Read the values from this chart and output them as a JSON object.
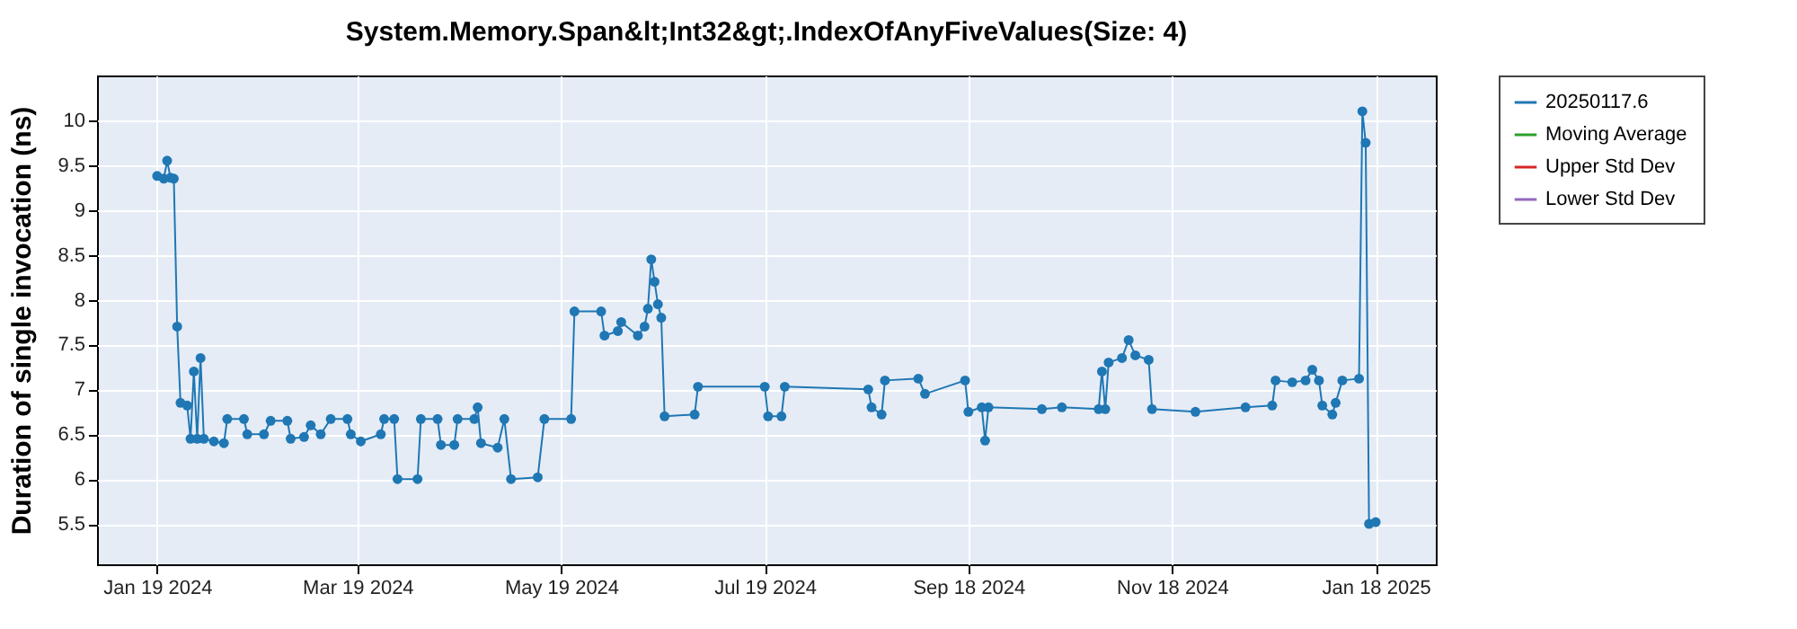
{
  "chart_data": {
    "type": "line",
    "title": "System.Memory.Span&lt;Int32&gt;.IndexOfAnyFiveValues(Size: 4)",
    "ylabel": "Duration of single invocation (ns)",
    "x": [
      "2024-01-19",
      "2024-01-21",
      "2024-01-22",
      "2024-01-23",
      "2024-01-24",
      "2024-01-25",
      "2024-01-26",
      "2024-01-28",
      "2024-01-29",
      "2024-01-30",
      "2024-01-31",
      "2024-02-01",
      "2024-02-02",
      "2024-02-05",
      "2024-02-08",
      "2024-02-09",
      "2024-02-14",
      "2024-02-15",
      "2024-02-20",
      "2024-02-22",
      "2024-02-27",
      "2024-02-28",
      "2024-03-03",
      "2024-03-05",
      "2024-03-08",
      "2024-03-11",
      "2024-03-16",
      "2024-03-17",
      "2024-03-20",
      "2024-03-26",
      "2024-03-27",
      "2024-03-30",
      "2024-03-31",
      "2024-04-06",
      "2024-04-07",
      "2024-04-12",
      "2024-04-13",
      "2024-04-17",
      "2024-04-18",
      "2024-04-23",
      "2024-04-24",
      "2024-04-25",
      "2024-04-30",
      "2024-05-02",
      "2024-05-04",
      "2024-05-12",
      "2024-05-14",
      "2024-05-22",
      "2024-05-23",
      "2024-05-31",
      "2024-06-01",
      "2024-06-05",
      "2024-06-06",
      "2024-06-11",
      "2024-06-13",
      "2024-06-14",
      "2024-06-15",
      "2024-06-16",
      "2024-06-17",
      "2024-06-18",
      "2024-06-19",
      "2024-06-28",
      "2024-06-29",
      "2024-07-19",
      "2024-07-20",
      "2024-07-24",
      "2024-07-25",
      "2024-08-19",
      "2024-08-20",
      "2024-08-23",
      "2024-08-24",
      "2024-09-03",
      "2024-09-05",
      "2024-09-17",
      "2024-09-18",
      "2024-09-22",
      "2024-09-23",
      "2024-09-24",
      "2024-10-10",
      "2024-10-16",
      "2024-10-27",
      "2024-10-28",
      "2024-10-29",
      "2024-10-30",
      "2024-11-03",
      "2024-11-05",
      "2024-11-07",
      "2024-11-11",
      "2024-11-12",
      "2024-11-25",
      "2024-12-10",
      "2024-12-18",
      "2024-12-19",
      "2024-12-24",
      "2024-12-28",
      "2024-12-30",
      "2025-01-01",
      "2025-01-02",
      "2025-01-05",
      "2025-01-06",
      "2025-01-08",
      "2025-01-13",
      "2025-01-14",
      "2025-01-15",
      "2025-01-16",
      "2025-01-18"
    ],
    "series": [
      {
        "name": "20250117.6",
        "color": "#1f77b4",
        "values": [
          9.38,
          9.35,
          9.55,
          9.36,
          9.35,
          7.7,
          6.85,
          6.82,
          6.45,
          7.2,
          6.45,
          7.35,
          6.45,
          6.42,
          6.4,
          6.67,
          6.67,
          6.5,
          6.5,
          6.65,
          6.65,
          6.45,
          6.47,
          6.6,
          6.5,
          6.67,
          6.67,
          6.5,
          6.42,
          6.5,
          6.67,
          6.67,
          6.0,
          6.0,
          6.67,
          6.67,
          6.38,
          6.38,
          6.67,
          6.67,
          6.8,
          6.4,
          6.35,
          6.67,
          6.0,
          6.02,
          6.67,
          6.67,
          7.87,
          7.87,
          7.6,
          7.65,
          7.75,
          7.6,
          7.7,
          7.9,
          8.45,
          8.2,
          7.95,
          7.8,
          6.7,
          6.72,
          7.03,
          7.03,
          6.7,
          6.7,
          7.03,
          7.0,
          6.8,
          6.72,
          7.1,
          7.12,
          6.95,
          7.1,
          6.75,
          6.8,
          6.43,
          6.8,
          6.78,
          6.8,
          6.78,
          7.2,
          6.78,
          7.3,
          7.35,
          7.55,
          7.38,
          7.33,
          6.78,
          6.75,
          6.8,
          6.82,
          7.1,
          7.08,
          7.1,
          7.22,
          7.1,
          6.82,
          6.72,
          6.85,
          7.1,
          7.12,
          10.1,
          9.75,
          5.5,
          5.52
        ]
      },
      {
        "name": "Moving Average",
        "color": "#2ca02c",
        "values": [
          null,
          null,
          null,
          null,
          null,
          null,
          null,
          null,
          null,
          null,
          null,
          null,
          null,
          null,
          null,
          null,
          null,
          null,
          null,
          null,
          null,
          null,
          null,
          null,
          null,
          null,
          null,
          null,
          null,
          null,
          null,
          null,
          null,
          null,
          null,
          null,
          null,
          null,
          null,
          null,
          null,
          null,
          null,
          null,
          null,
          null,
          null,
          null,
          null,
          null,
          null,
          null,
          null,
          null,
          null,
          null,
          null,
          null,
          null,
          null,
          null,
          null,
          null,
          null,
          null,
          null,
          null,
          null,
          null,
          null,
          null,
          null,
          null,
          null,
          null,
          null,
          null,
          null,
          null,
          null,
          null,
          null,
          null,
          null,
          null,
          null,
          null,
          null,
          null,
          null,
          null,
          null,
          null,
          null,
          null,
          null,
          null,
          null,
          null,
          null,
          null,
          null,
          null,
          null,
          null,
          null
        ]
      },
      {
        "name": "Upper Std Dev",
        "color": "#d62728",
        "values": [
          null,
          null,
          null,
          null,
          null,
          null,
          null,
          null,
          null,
          null,
          null,
          null,
          null,
          null,
          null,
          null,
          null,
          null,
          null,
          null,
          null,
          null,
          null,
          null,
          null,
          null,
          null,
          null,
          null,
          null,
          null,
          null,
          null,
          null,
          null,
          null,
          null,
          null,
          null,
          null,
          null,
          null,
          null,
          null,
          null,
          null,
          null,
          null,
          null,
          null,
          null,
          null,
          null,
          null,
          null,
          null,
          null,
          null,
          null,
          null,
          null,
          null,
          null,
          null,
          null,
          null,
          null,
          null,
          null,
          null,
          null,
          null,
          null,
          null,
          null,
          null,
          null,
          null,
          null,
          null,
          null,
          null,
          null,
          null,
          null,
          null,
          null,
          null,
          null,
          null,
          null,
          null,
          null,
          null,
          null,
          null,
          null,
          null,
          null,
          null,
          null,
          null,
          null,
          null,
          null,
          null
        ]
      },
      {
        "name": "Lower Std Dev",
        "color": "#9467bd",
        "values": [
          null,
          null,
          null,
          null,
          null,
          null,
          null,
          null,
          null,
          null,
          null,
          null,
          null,
          null,
          null,
          null,
          null,
          null,
          null,
          null,
          null,
          null,
          null,
          null,
          null,
          null,
          null,
          null,
          null,
          null,
          null,
          null,
          null,
          null,
          null,
          null,
          null,
          null,
          null,
          null,
          null,
          null,
          null,
          null,
          null,
          null,
          null,
          null,
          null,
          null,
          null,
          null,
          null,
          null,
          null,
          null,
          null,
          null,
          null,
          null,
          null,
          null,
          null,
          null,
          null,
          null,
          null,
          null,
          null,
          null,
          null,
          null,
          null,
          null,
          null,
          null,
          null,
          null,
          null,
          null,
          null,
          null,
          null,
          null,
          null,
          null,
          null,
          null,
          null,
          null,
          null,
          null,
          null,
          null,
          null,
          null,
          null,
          null,
          null,
          null,
          null,
          null,
          null,
          null,
          null,
          null
        ]
      }
    ],
    "xlim": [
      "2024-01-01",
      "2025-02-05"
    ],
    "xticks": [
      {
        "value": "2024-01-19",
        "label": "Jan 19 2024"
      },
      {
        "value": "2024-03-19",
        "label": "Mar 19 2024"
      },
      {
        "value": "2024-05-19",
        "label": "May 19 2024"
      },
      {
        "value": "2024-07-19",
        "label": "Jul 19 2024"
      },
      {
        "value": "2024-09-18",
        "label": "Sep 18 2024"
      },
      {
        "value": "2024-11-18",
        "label": "Nov 18 2024"
      },
      {
        "value": "2025-01-18",
        "label": "Jan 18 2025"
      }
    ],
    "ylim": [
      5.05,
      10.5
    ],
    "yticks": [
      5.5,
      6,
      6.5,
      7,
      7.5,
      8,
      8.5,
      9,
      9.5,
      10
    ],
    "grid": true,
    "legend": "right",
    "marker": "circle",
    "line_style": "solid"
  }
}
